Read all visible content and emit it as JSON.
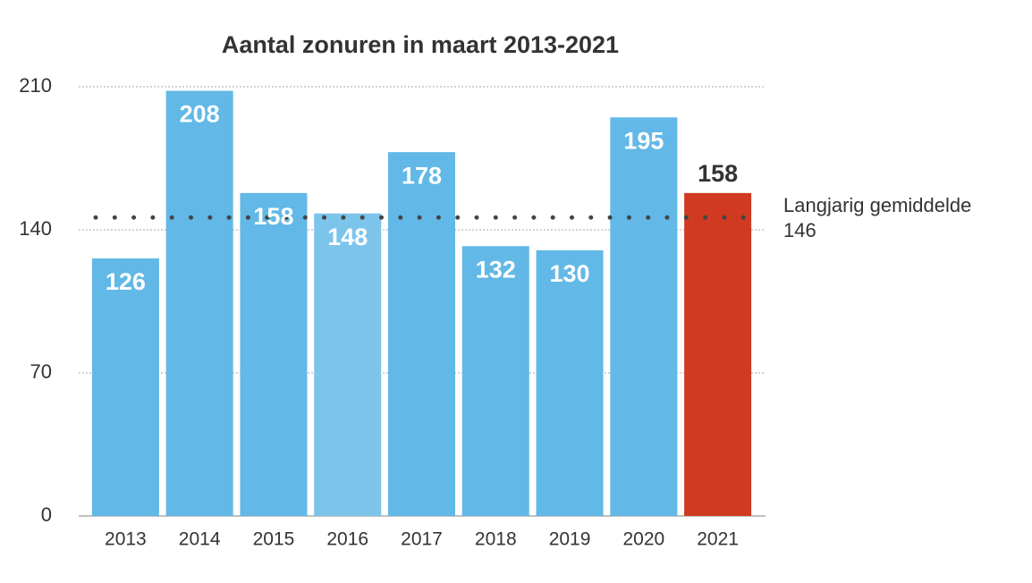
{
  "chart_data": {
    "type": "bar",
    "title": "Aantal zonuren in maart 2013-2021",
    "categories": [
      "2013",
      "2014",
      "2015",
      "2016",
      "2017",
      "2018",
      "2019",
      "2020",
      "2021"
    ],
    "values": [
      126,
      208,
      158,
      148,
      178,
      132,
      130,
      195,
      158
    ],
    "colors": [
      "#62b8e6",
      "#62b8e6",
      "#62b8e6",
      "#7cc4ea",
      "#62b8e6",
      "#62b8e6",
      "#62b8e6",
      "#62b8e6",
      "#d03a21"
    ],
    "ylim": [
      0,
      210
    ],
    "yticks": [
      0,
      70,
      140,
      210
    ],
    "grid": true,
    "reference_line": {
      "label": "Langjarig gemiddelde",
      "value": 146
    }
  }
}
